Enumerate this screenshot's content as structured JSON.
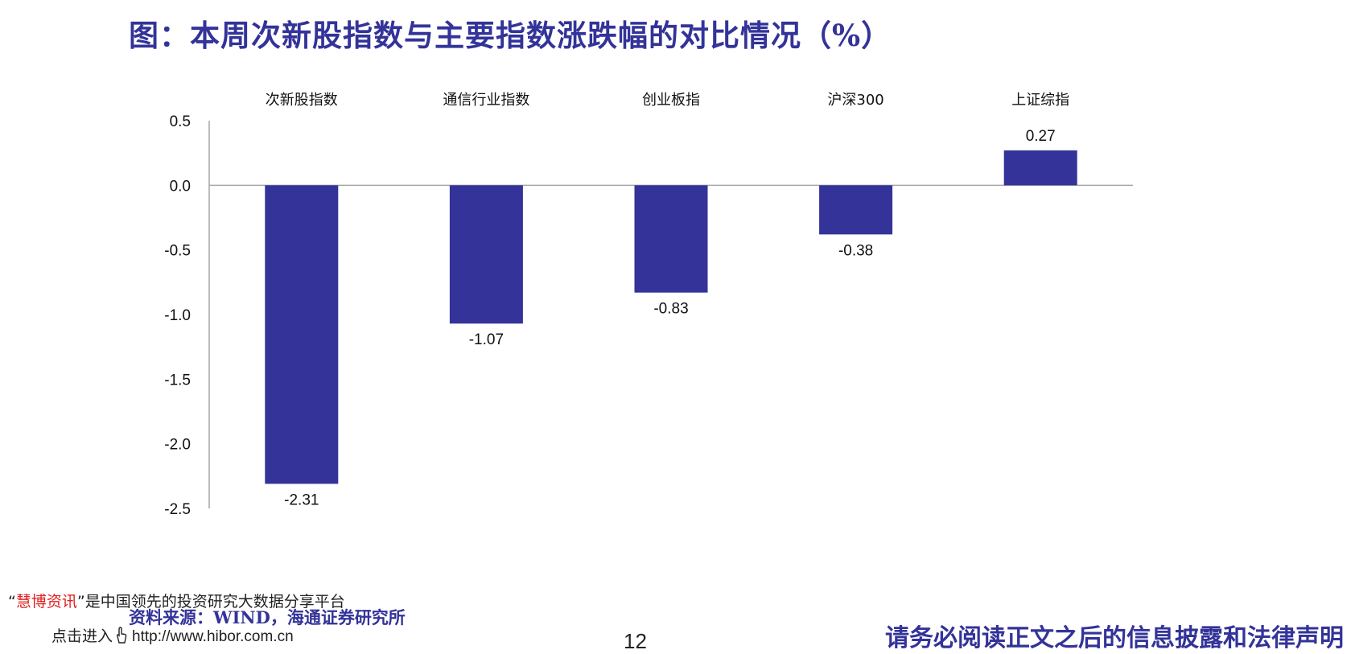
{
  "title": "图：本周次新股指数与主要指数涨跌幅的对比情况（%）",
  "chart_data": {
    "type": "bar",
    "title": "图：本周次新股指数与主要指数涨跌幅的对比情况（%）",
    "categories": [
      "次新股指数",
      "通信行业指数",
      "创业板指",
      "沪深300",
      "上证综指"
    ],
    "values": [
      -2.31,
      -1.07,
      -0.83,
      -0.38,
      0.27
    ],
    "value_labels": [
      "-2.31",
      "-1.07",
      "-0.83",
      "-0.38",
      "0.27"
    ],
    "ylim": [
      -2.5,
      0.5
    ],
    "yticks": [
      0.5,
      0.0,
      -0.5,
      -1.0,
      -1.5,
      -2.0,
      -2.5
    ],
    "ytick_labels": [
      "0.5",
      "0.0",
      "-0.5",
      "-1.0",
      "-1.5",
      "-2.0",
      "-2.5"
    ],
    "category_label_position": "top",
    "xlabel": "",
    "ylabel": "",
    "grid": false,
    "legend": "none",
    "bar_color": "#333399",
    "axis_color": "#a6a6a6"
  },
  "footer": {
    "promo_open_quote": "“",
    "promo_brand": "慧博资讯",
    "promo_rest": "”是中国领先的投资研究大数据分享平台",
    "source": "资料来源：WIND，海通证券研究所",
    "enter_label": "点击进入",
    "hand_icon": "hand-pointer-icon",
    "url": "http://www.hibor.com.cn",
    "page_number": "12",
    "disclaimer": "请务必阅读正文之后的信息披露和法律声明"
  },
  "colors": {
    "title": "#333399",
    "brand": "#e02020"
  }
}
